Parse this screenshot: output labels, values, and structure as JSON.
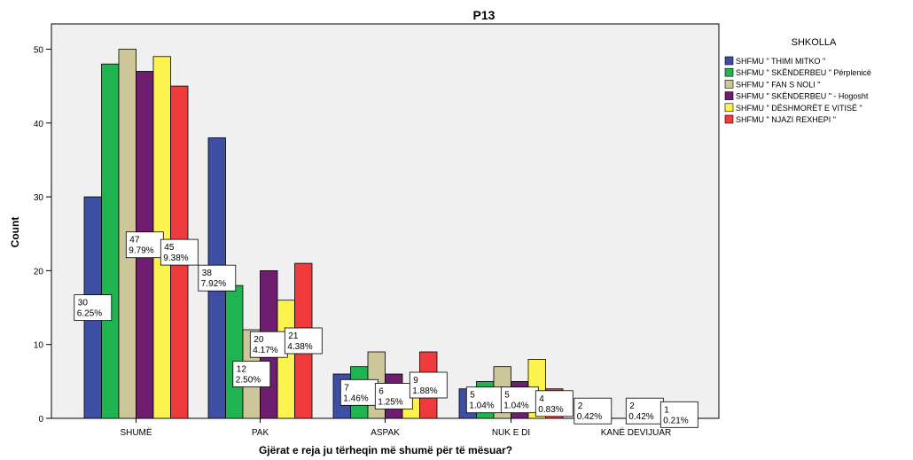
{
  "chart_data": {
    "type": "bar",
    "title": "P13",
    "xlabel": "Gjërat e reja ju tërheqin më shumë për të mësuar?",
    "ylabel": "Count",
    "ylim": [
      0,
      52
    ],
    "yticks": [
      0,
      10,
      20,
      30,
      40,
      50
    ],
    "grid": false,
    "legend_title": "SHKOLLA",
    "legend_position": "right",
    "categories": [
      "SHUMË",
      "PAK",
      "ASPAK",
      "NUK E DI",
      "KANË DEVIJUAR"
    ],
    "series": [
      {
        "name": "SHFMU \" THIMI MITKO \"",
        "color": "#3d4ea3",
        "values": [
          30,
          38,
          6,
          4,
          2
        ]
      },
      {
        "name": "SHFMU \" SKËNDERBEU \" Përplenicë",
        "color": "#20b450",
        "values": [
          48,
          18,
          7,
          5,
          0
        ]
      },
      {
        "name": "SHFMU \" FAN S NOLI \"",
        "color": "#cdc699",
        "values": [
          50,
          12,
          9,
          7,
          0
        ]
      },
      {
        "name": "SHFMU \" SKËNDERBEU \" -  Hogosht",
        "color": "#6e1e6e",
        "values": [
          47,
          20,
          6,
          5,
          2
        ]
      },
      {
        "name": "SHFMU \" DËSHMORËT E VITISË \"",
        "color": "#fdf34f",
        "values": [
          49,
          16,
          3,
          8,
          0
        ]
      },
      {
        "name": "SHFMU \" NJAZI REXHEPI \"",
        "color": "#ef3b3b",
        "values": [
          45,
          21,
          9,
          4,
          1
        ]
      }
    ],
    "data_labels": [
      {
        "category": "SHUMË",
        "series": 0,
        "count": "30",
        "percent": "6.25%"
      },
      {
        "category": "SHUMË",
        "series": 3,
        "count": "47",
        "percent": "9.79%"
      },
      {
        "category": "SHUMË",
        "series": 5,
        "count": "45",
        "percent": "9.38%"
      },
      {
        "category": "PAK",
        "series": 0,
        "count": "38",
        "percent": "7.92%"
      },
      {
        "category": "PAK",
        "series": 2,
        "count": "12",
        "percent": "2.50%"
      },
      {
        "category": "PAK",
        "series": 3,
        "count": "20",
        "percent": "4.17%"
      },
      {
        "category": "PAK",
        "series": 5,
        "count": "21",
        "percent": "4.38%"
      },
      {
        "category": "ASPAK",
        "series": 1,
        "count": "7",
        "percent": "1.46%"
      },
      {
        "category": "ASPAK",
        "series": 3,
        "count": "6",
        "percent": "1.25%"
      },
      {
        "category": "ASPAK",
        "series": 5,
        "count": "9",
        "percent": "1.88%"
      },
      {
        "category": "NUK E DI",
        "series": 1,
        "count": "5",
        "percent": "1.04%"
      },
      {
        "category": "NUK E DI",
        "series": 3,
        "count": "5",
        "percent": "1.04%"
      },
      {
        "category": "NUK E DI",
        "series": 5,
        "count": "4",
        "percent": "0.83%"
      },
      {
        "category": "KANË DEVIJUAR",
        "series": 0,
        "count": "2",
        "percent": "0.42%"
      },
      {
        "category": "KANË DEVIJUAR",
        "series": 3,
        "count": "2",
        "percent": "0.42%"
      },
      {
        "category": "KANË DEVIJUAR",
        "series": 5,
        "count": "1",
        "percent": "0.21%"
      }
    ]
  }
}
